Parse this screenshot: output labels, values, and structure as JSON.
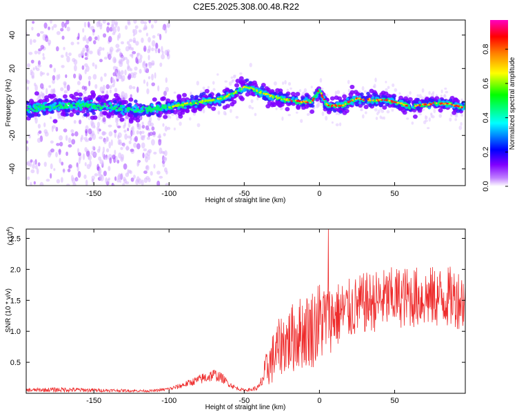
{
  "title": "C2E5.2025.308.00.48.R22",
  "chart_data": [
    {
      "type": "heatmap",
      "xlabel": "Height of straight line (km)",
      "ylabel": "Frequency (Hz)",
      "xlim": [
        -195,
        97
      ],
      "ylim": [
        -50,
        49
      ],
      "xticks": [
        -150,
        -100,
        -50,
        0,
        50
      ],
      "xtick_labels": [
        "-150",
        "-100",
        "-50",
        "0",
        "50"
      ],
      "yticks": [
        -40,
        -20,
        0,
        20,
        40
      ],
      "ytick_labels": [
        "-40",
        "-20",
        "0",
        "20",
        "40"
      ],
      "colorbar": {
        "label": "Normalized spectral amplitude",
        "range": [
          0,
          0.97
        ],
        "ticks": [
          0.0,
          0.2,
          0.4,
          0.6,
          0.8
        ],
        "tick_labels": [
          "0.0",
          "0.2",
          "0.4",
          "0.6",
          "0.8"
        ],
        "colormap": [
          "#ffffff",
          "#a040ff",
          "#0000ff",
          "#00ffff",
          "#00ff00",
          "#ffff00",
          "#ff8000",
          "#ff0000",
          "#ff00c0"
        ]
      },
      "ridge_km": [
        -195,
        -180,
        -160,
        -140,
        -120,
        -110,
        -100,
        -80,
        -65,
        -55,
        -50,
        -45,
        -40,
        -30,
        -20,
        -10,
        -5,
        0,
        5,
        15,
        25,
        35,
        45,
        55,
        60,
        65,
        75,
        85,
        95
      ],
      "ridge_hz": [
        -4,
        -3,
        -2,
        -3,
        -5,
        -4,
        -3,
        0,
        2,
        6,
        9,
        8,
        6,
        3,
        1,
        0,
        0,
        7,
        -2,
        -2,
        2,
        1,
        1,
        -1,
        -3,
        -2,
        -1,
        -1,
        -3
      ]
    },
    {
      "type": "line",
      "xlabel": "Height of straight line (km)",
      "ylabel": "SNR (10 * v/v)",
      "scale_label_prefix": "(x10",
      "scale_label_exp": "4",
      "scale_label_suffix": ")",
      "xlim": [
        -195,
        97
      ],
      "ylim": [
        0,
        2.65
      ],
      "xticks": [
        -150,
        -100,
        -50,
        0,
        50
      ],
      "xtick_labels": [
        "-150",
        "-100",
        "-50",
        "0",
        "50"
      ],
      "yticks": [
        0.5,
        1.0,
        1.5,
        2.0,
        2.5
      ],
      "ytick_labels": [
        "0.5",
        "1.0",
        "1.5",
        "2.0",
        "2.5"
      ],
      "color": "#ee2b2b",
      "envelope_x": [
        -195,
        -170,
        -150,
        -120,
        -110,
        -100,
        -95,
        -85,
        -80,
        -75,
        -70,
        -65,
        -60,
        -55,
        -50,
        -45,
        -40,
        -35,
        -30,
        -25,
        -20,
        -15,
        -10,
        -5,
        0,
        5,
        10,
        20,
        30,
        40,
        50,
        60,
        70,
        80,
        90,
        97
      ],
      "envelope_mean": [
        0.05,
        0.06,
        0.05,
        0.04,
        0.04,
        0.07,
        0.1,
        0.18,
        0.22,
        0.26,
        0.3,
        0.25,
        0.15,
        0.08,
        0.05,
        0.06,
        0.1,
        0.4,
        0.6,
        0.8,
        0.85,
        0.95,
        1.0,
        1.05,
        1.15,
        1.2,
        1.25,
        1.35,
        1.45,
        1.5,
        1.55,
        1.55,
        1.55,
        1.55,
        1.55,
        1.5
      ],
      "envelope_spread": [
        0.03,
        0.04,
        0.03,
        0.02,
        0.02,
        0.03,
        0.04,
        0.06,
        0.08,
        0.1,
        0.1,
        0.08,
        0.05,
        0.03,
        0.02,
        0.03,
        0.05,
        0.3,
        0.45,
        0.5,
        0.55,
        0.6,
        0.6,
        0.65,
        0.7,
        0.6,
        0.55,
        0.5,
        0.5,
        0.5,
        0.5,
        0.5,
        0.5,
        0.5,
        0.5,
        0.5
      ],
      "peak": {
        "x": 6,
        "y": 2.65
      }
    }
  ]
}
